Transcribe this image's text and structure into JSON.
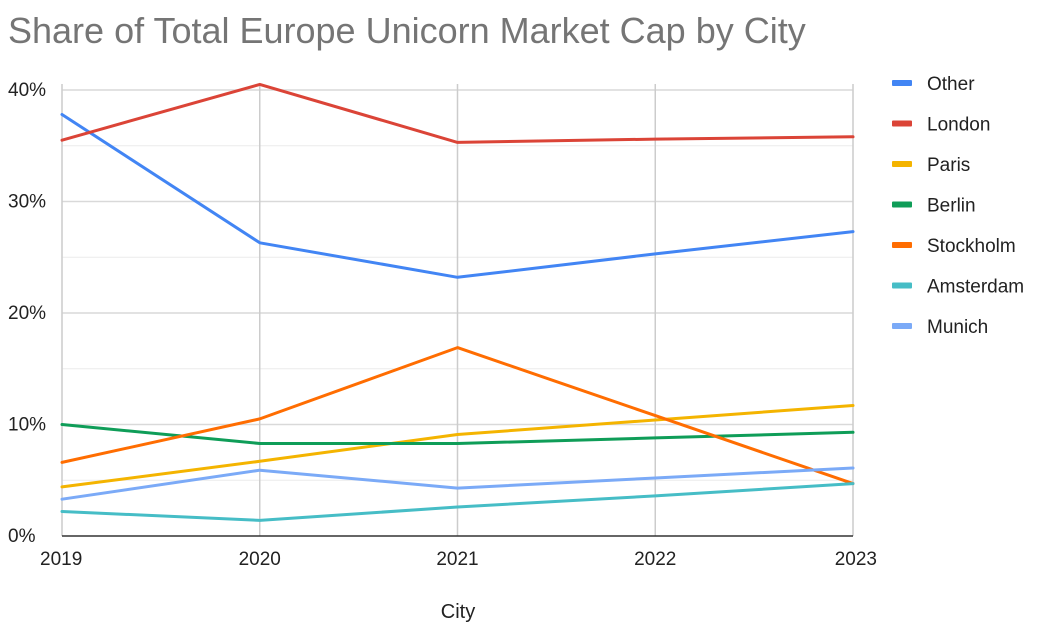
{
  "chart_data": {
    "type": "line",
    "title": "Share of Total Europe Unicorn Market Cap by City",
    "xlabel": "City",
    "ylabel": "",
    "x": [
      "2019",
      "2020",
      "2021",
      "2022",
      "2023"
    ],
    "ylim": [
      0,
      40
    ],
    "yticks": [
      0,
      10,
      20,
      30,
      40
    ],
    "ytick_labels": [
      "0%",
      "10%",
      "20%",
      "30%",
      "40%"
    ],
    "grid": true,
    "legend_position": "right",
    "series": [
      {
        "name": "Other",
        "color": "#4285F4",
        "values": [
          37.8,
          26.3,
          23.2,
          25.3,
          27.3
        ]
      },
      {
        "name": "London",
        "color": "#DB4437",
        "values": [
          35.5,
          40.5,
          35.3,
          35.6,
          35.8
        ]
      },
      {
        "name": "Paris",
        "color": "#F4B400",
        "values": [
          4.4,
          6.7,
          9.1,
          10.4,
          11.7
        ]
      },
      {
        "name": "Berlin",
        "color": "#0F9D58",
        "values": [
          10.0,
          8.3,
          8.3,
          8.8,
          9.3
        ]
      },
      {
        "name": "Stockholm",
        "color": "#FF6D01",
        "values": [
          6.6,
          10.5,
          16.9,
          10.8,
          4.7
        ]
      },
      {
        "name": "Amsterdam",
        "color": "#46BDC6",
        "values": [
          2.2,
          1.4,
          2.6,
          3.6,
          4.7
        ]
      },
      {
        "name": "Munich",
        "color": "#7BAAF7",
        "values": [
          3.3,
          5.9,
          4.3,
          5.2,
          6.1
        ]
      }
    ]
  }
}
